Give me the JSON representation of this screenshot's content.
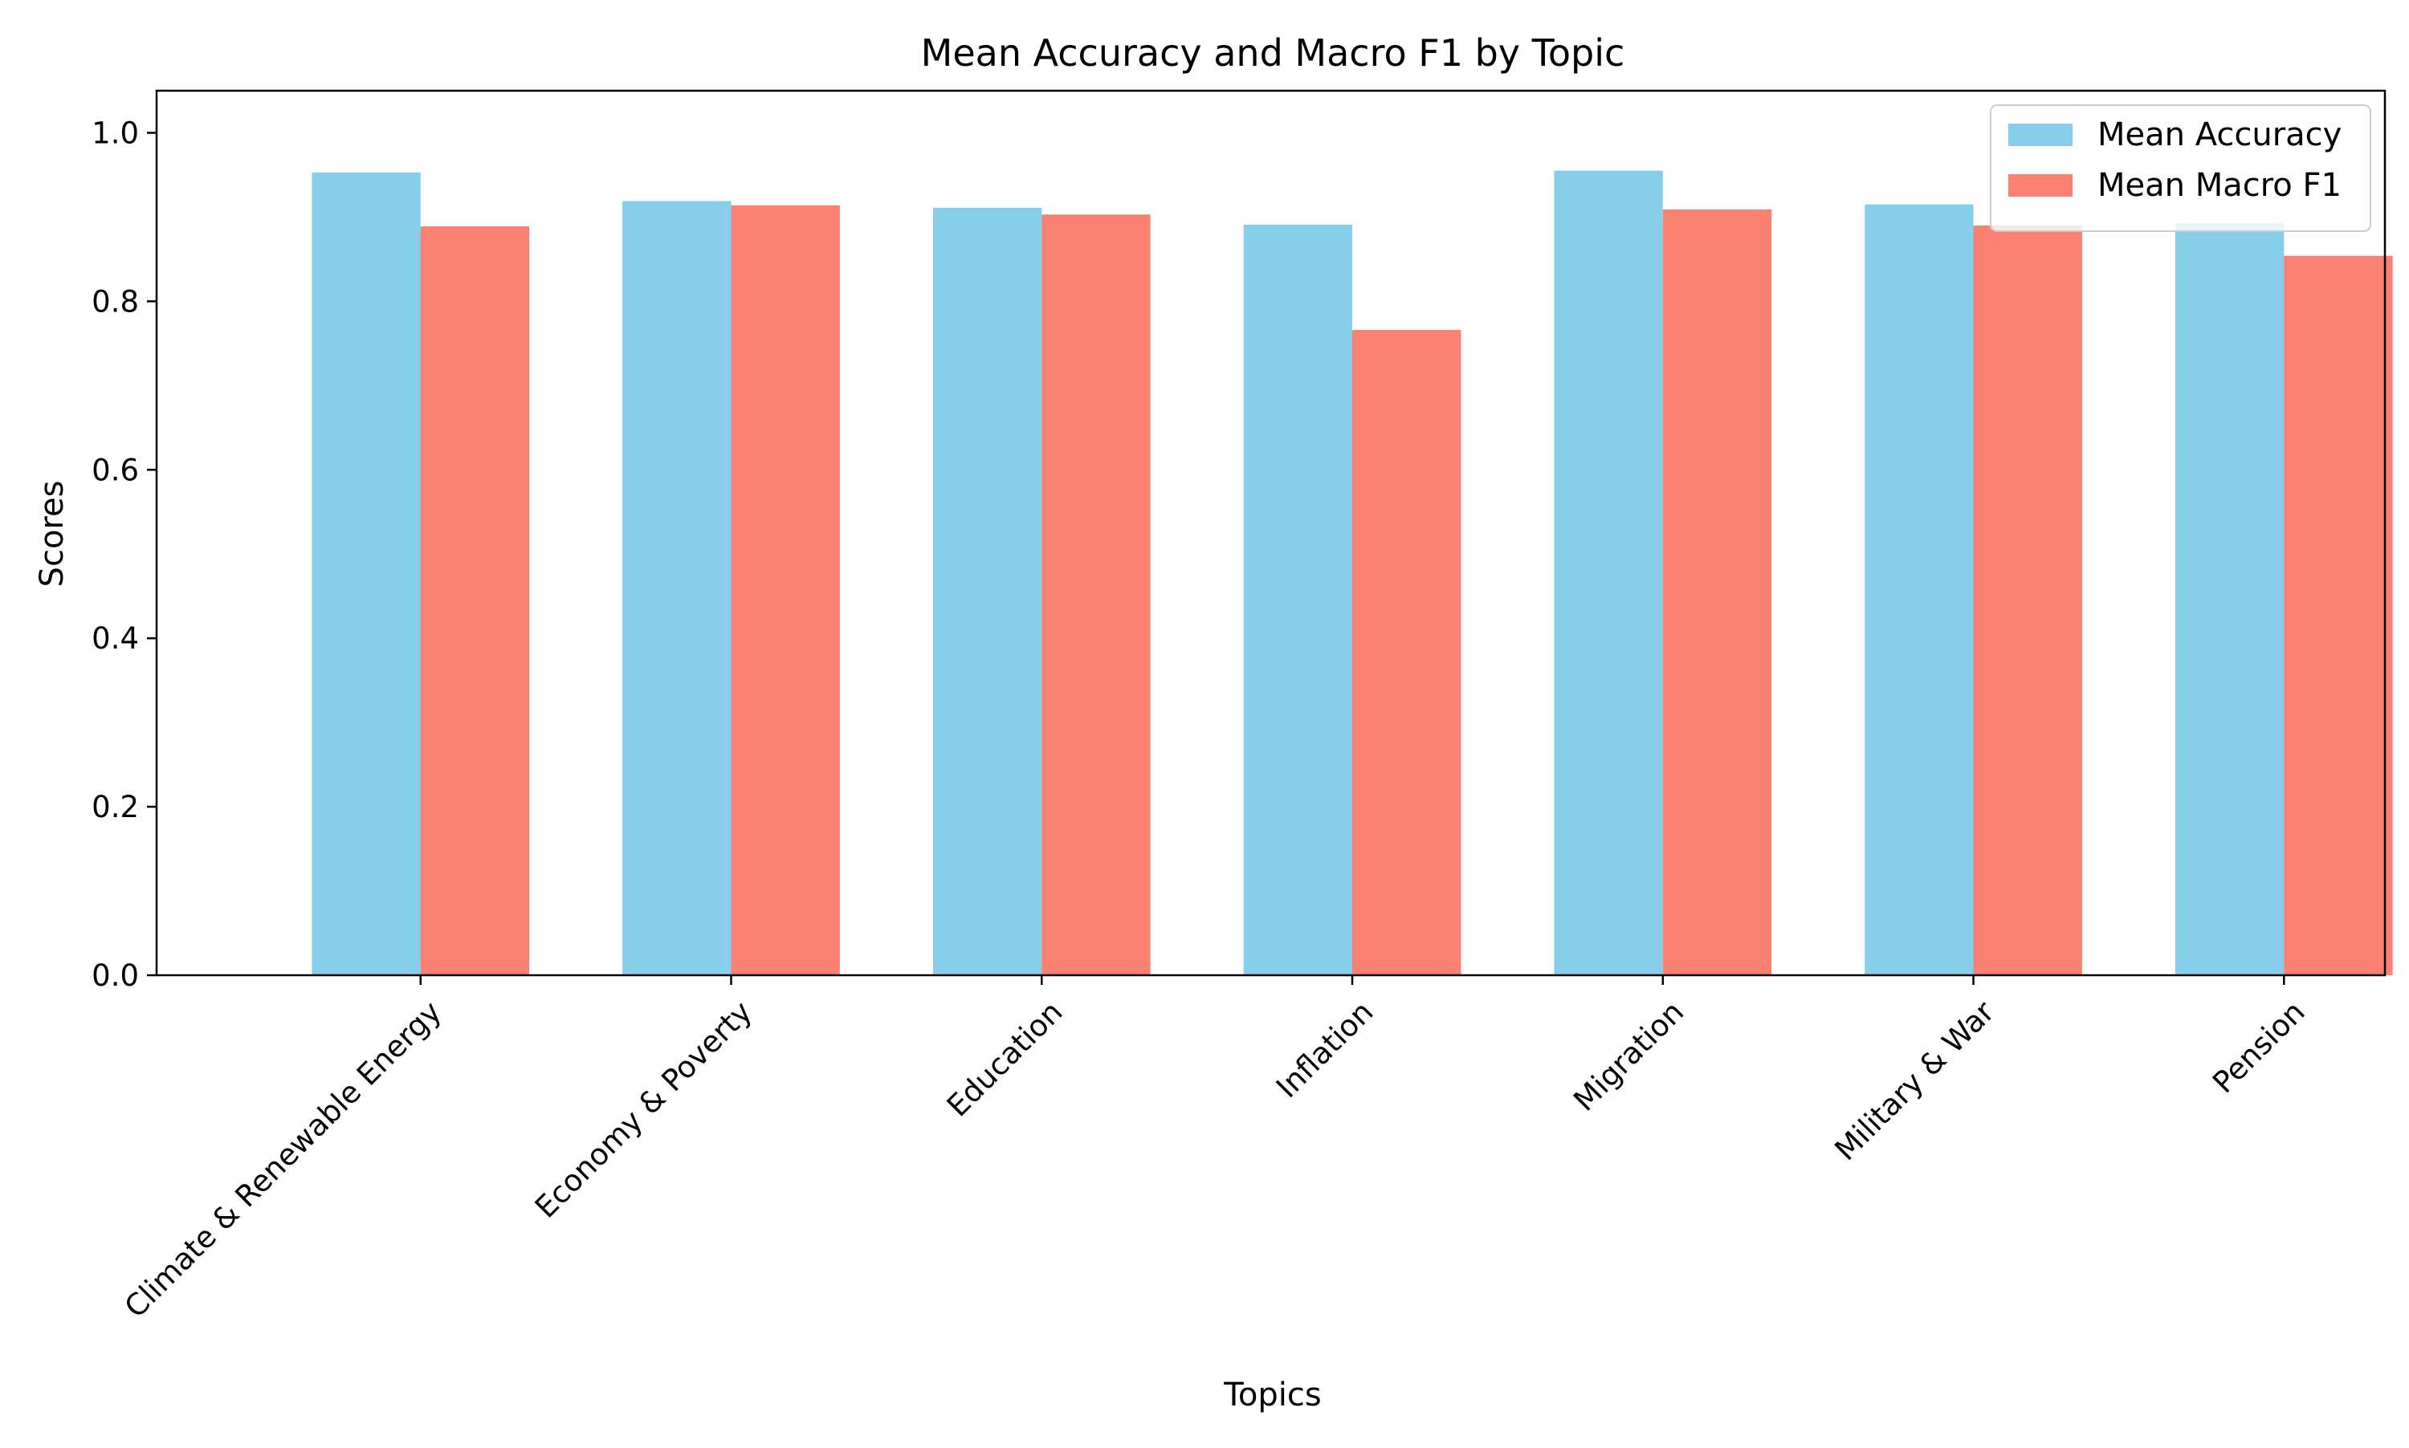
{
  "chart_data": {
    "type": "bar",
    "title": "Mean Accuracy and Macro F1 by Topic",
    "xlabel": "Topics",
    "ylabel": "Scores",
    "categories": [
      "Climate & Renewable Energy",
      "Economy & Poverty",
      "Education",
      "Inflation",
      "Migration",
      "Military & War",
      "Pension"
    ],
    "series": [
      {
        "name": "Mean Accuracy",
        "color": "#87ceeb",
        "values": [
          0.953,
          0.919,
          0.911,
          0.891,
          0.955,
          0.915,
          0.893
        ]
      },
      {
        "name": "Mean Macro F1",
        "color": "#fa8072",
        "values": [
          0.889,
          0.914,
          0.903,
          0.766,
          0.909,
          0.89,
          0.854
        ]
      }
    ],
    "ylim": [
      0,
      1.05
    ],
    "yticks": [
      0.0,
      0.2,
      0.4,
      0.6,
      0.8,
      1.0
    ],
    "ytick_labels": [
      "0.0",
      "0.2",
      "0.4",
      "0.6",
      "0.8",
      "1.0"
    ],
    "grid": false,
    "legend_position": "top-right"
  }
}
